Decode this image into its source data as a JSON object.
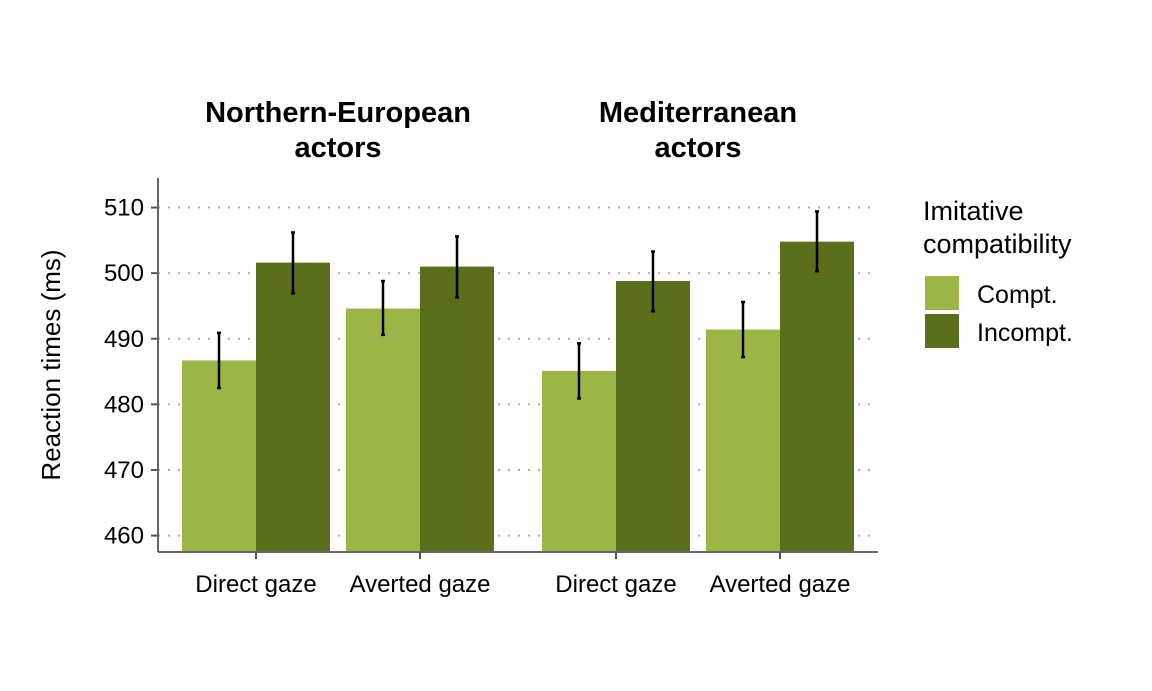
{
  "chart_data": {
    "type": "bar",
    "ylabel": "Reaction times (ms)",
    "ylim": [
      457.5,
      514.5
    ],
    "yticks": [
      460,
      470,
      480,
      490,
      500,
      510
    ],
    "grid": "horizontal dotted",
    "legend": {
      "title": "Imitative compatibility",
      "placement": "right",
      "entries": [
        {
          "label": "Compt.",
          "color": "#9bb547"
        },
        {
          "label": "Incompt.",
          "color": "#5b6e1c"
        }
      ]
    },
    "panels": [
      {
        "title": "Northern-European actors",
        "categories": [
          "Direct gaze",
          "Averted gaze"
        ],
        "series": [
          {
            "name": "Compt.",
            "values": [
              486.7,
              494.6
            ],
            "error_low": [
              482.5,
              490.6
            ],
            "error_high": [
              490.9,
              498.8
            ]
          },
          {
            "name": "Incompt.",
            "values": [
              501.6,
              501.0
            ],
            "error_low": [
              496.9,
              496.3
            ],
            "error_high": [
              506.2,
              505.6
            ]
          }
        ]
      },
      {
        "title": "Mediterranean actors",
        "categories": [
          "Direct gaze",
          "Averted gaze"
        ],
        "series": [
          {
            "name": "Compt.",
            "values": [
              485.1,
              491.4
            ],
            "error_low": [
              480.9,
              487.2
            ],
            "error_high": [
              489.3,
              495.6
            ]
          },
          {
            "name": "Incompt.",
            "values": [
              498.8,
              504.8
            ],
            "error_low": [
              494.2,
              500.3
            ],
            "error_high": [
              503.3,
              509.4
            ]
          }
        ]
      }
    ]
  }
}
